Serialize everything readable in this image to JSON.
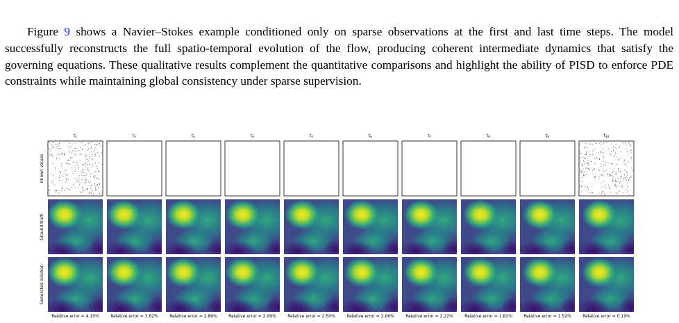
{
  "paragraph": {
    "lead": "Figure",
    "ref": "9",
    "rest": "shows a Navier–Stokes example conditioned only on sparse observations at the first and last time steps. The model successfully reconstructs the full spatio-temporal evolution of the flow, producing coherent intermediate dynamics that satisfy the governing equations. These qualitative results complement the quantitative comparisons and highlight the ability of PISD to enforce PDE constraints while maintaining global consistency under sparse supervision."
  },
  "figure": {
    "columns": [
      {
        "base": "t",
        "sub": "1"
      },
      {
        "base": "t",
        "sub": "2"
      },
      {
        "base": "t",
        "sub": "3"
      },
      {
        "base": "t",
        "sub": "4"
      },
      {
        "base": "t",
        "sub": "5"
      },
      {
        "base": "t",
        "sub": "6"
      },
      {
        "base": "t",
        "sub": "7"
      },
      {
        "base": "t",
        "sub": "8"
      },
      {
        "base": "t",
        "sub": "9"
      },
      {
        "base": "t",
        "sub": "10"
      }
    ],
    "rows": [
      "Known values",
      "Ground truth",
      "Generated solution"
    ],
    "captions": [
      "Relative error = 4.10%",
      "Relative error = 3.62%",
      "Relative error = 2.86%",
      "Relative error = 2.99%",
      "Relative error = 2.50%",
      "Relative error = 2.66%",
      "Relative error = 2.22%",
      "Relative error = 1.82%",
      "Relative error = 1.52%",
      "Relative error = 0.19%"
    ]
  }
}
